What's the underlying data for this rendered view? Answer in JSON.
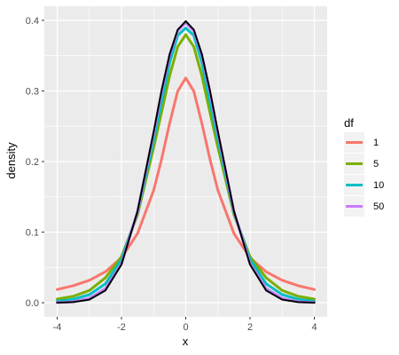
{
  "chart_data": {
    "type": "line",
    "title": "",
    "xlabel": "x",
    "ylabel": "density",
    "xlim": [
      -4,
      4
    ],
    "ylim": [
      0,
      0.4
    ],
    "x_ticks": [
      -4,
      -2,
      0,
      2,
      4
    ],
    "y_ticks": [
      0.0,
      0.1,
      0.2,
      0.3,
      0.4
    ],
    "x_tick_labels": [
      "-4",
      "-2",
      "0",
      "2",
      "4"
    ],
    "y_tick_labels": [
      "0.0",
      "0.1",
      "0.2",
      "0.3",
      "0.4"
    ],
    "grid": true,
    "legend": {
      "title": "df",
      "position": "right"
    },
    "x": [
      -4.0,
      -3.5,
      -3.0,
      -2.5,
      -2.0,
      -1.5,
      -1.0,
      -0.75,
      -0.5,
      -0.25,
      0.0,
      0.25,
      0.5,
      0.75,
      1.0,
      1.5,
      2.0,
      2.5,
      3.0,
      3.5,
      4.0
    ],
    "series": [
      {
        "name": "1",
        "color": "#F8766D",
        "values": [
          0.0187,
          0.0241,
          0.0318,
          0.0439,
          0.0637,
          0.0979,
          0.1592,
          0.2037,
          0.2546,
          0.2996,
          0.3183,
          0.2996,
          0.2546,
          0.2037,
          0.1592,
          0.0979,
          0.0637,
          0.0439,
          0.0318,
          0.0241,
          0.0187
        ]
      },
      {
        "name": "5",
        "color": "#7CAE00",
        "values": [
          0.0051,
          0.009,
          0.0173,
          0.0354,
          0.0651,
          0.1245,
          0.2197,
          0.2702,
          0.322,
          0.3626,
          0.3796,
          0.3626,
          0.322,
          0.2702,
          0.2197,
          0.1245,
          0.0651,
          0.0354,
          0.0173,
          0.009,
          0.0051
        ]
      },
      {
        "name": "10",
        "color": "#00BFC4",
        "values": [
          0.002,
          0.0049,
          0.0114,
          0.0269,
          0.0611,
          0.1274,
          0.2304,
          0.2849,
          0.3403,
          0.3787,
          0.3891,
          0.3787,
          0.3403,
          0.2849,
          0.2304,
          0.1274,
          0.0611,
          0.0269,
          0.0114,
          0.0049,
          0.002
        ]
      },
      {
        "name": "50",
        "color": "#C77CFF",
        "values": [
          0.0003,
          0.0014,
          0.0061,
          0.02,
          0.0554,
          0.1292,
          0.2396,
          0.2986,
          0.3512,
          0.3851,
          0.3969,
          0.3851,
          0.3512,
          0.2986,
          0.2396,
          0.1292,
          0.0554,
          0.02,
          0.0061,
          0.0014,
          0.0003
        ]
      },
      {
        "name": "",
        "color": "#000000",
        "values": [
          0.0001,
          0.0009,
          0.0044,
          0.0175,
          0.054,
          0.1295,
          0.242,
          0.3011,
          0.3521,
          0.3867,
          0.3989,
          0.3867,
          0.3521,
          0.3011,
          0.242,
          0.1295,
          0.054,
          0.0175,
          0.0044,
          0.0009,
          0.0001
        ]
      }
    ]
  }
}
